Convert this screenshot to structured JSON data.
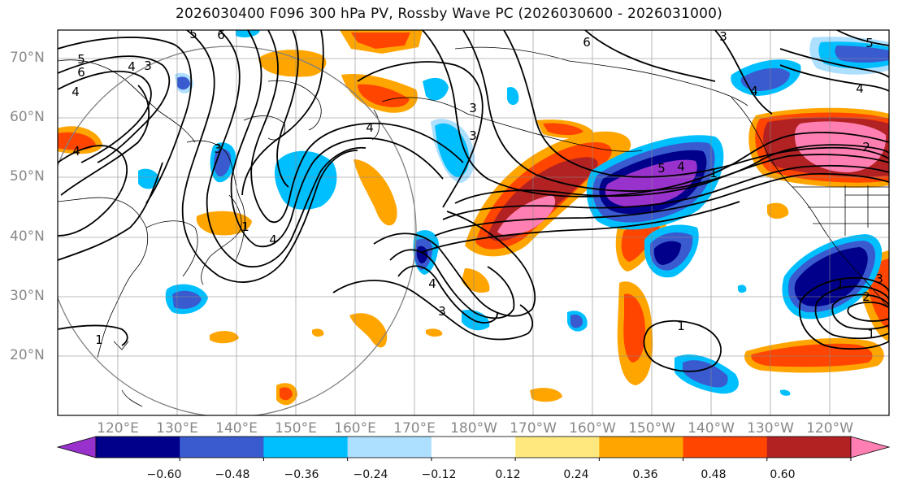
{
  "title": "2026030400 F096 300 hPa PV, Rossby Wave PC (2026030600 - 2026031000)",
  "lat_labels": [
    "70°N",
    "60°N",
    "50°N",
    "40°N",
    "30°N",
    "20°N"
  ],
  "lon_labels": [
    "120°E",
    "130°E",
    "140°E",
    "150°E",
    "160°E",
    "170°E",
    "180°W",
    "170°W",
    "160°W",
    "150°W",
    "140°W",
    "130°W",
    "120°W"
  ],
  "colorbar": {
    "tick_labels": [
      "−0.60",
      "−0.48",
      "−0.36",
      "−0.24",
      "−0.12",
      "0.12",
      "0.24",
      "0.36",
      "0.48",
      "0.60"
    ],
    "bounds": [
      -0.72,
      -0.6,
      -0.48,
      -0.36,
      -0.24,
      -0.12,
      0.12,
      0.24,
      0.36,
      0.48,
      0.6,
      0.72
    ],
    "colors": [
      "#9932CC",
      "#00008B",
      "#3A5BD0",
      "#00BFFF",
      "#ADDFFF",
      "#FFFFFF",
      "#FFE97F",
      "#FFA500",
      "#FF4500",
      "#B22222",
      "#FF7FB2"
    ]
  },
  "contour_labels": [
    "5",
    "6",
    "4",
    "3",
    "5",
    "6",
    "4",
    "4",
    "3",
    "6",
    "2",
    "3",
    "4",
    "4",
    "5",
    "3",
    "3",
    "4",
    "1",
    "4",
    "5",
    "4",
    "1",
    "2",
    "1",
    "3",
    "1",
    "1",
    "4",
    "3",
    "1"
  ]
}
